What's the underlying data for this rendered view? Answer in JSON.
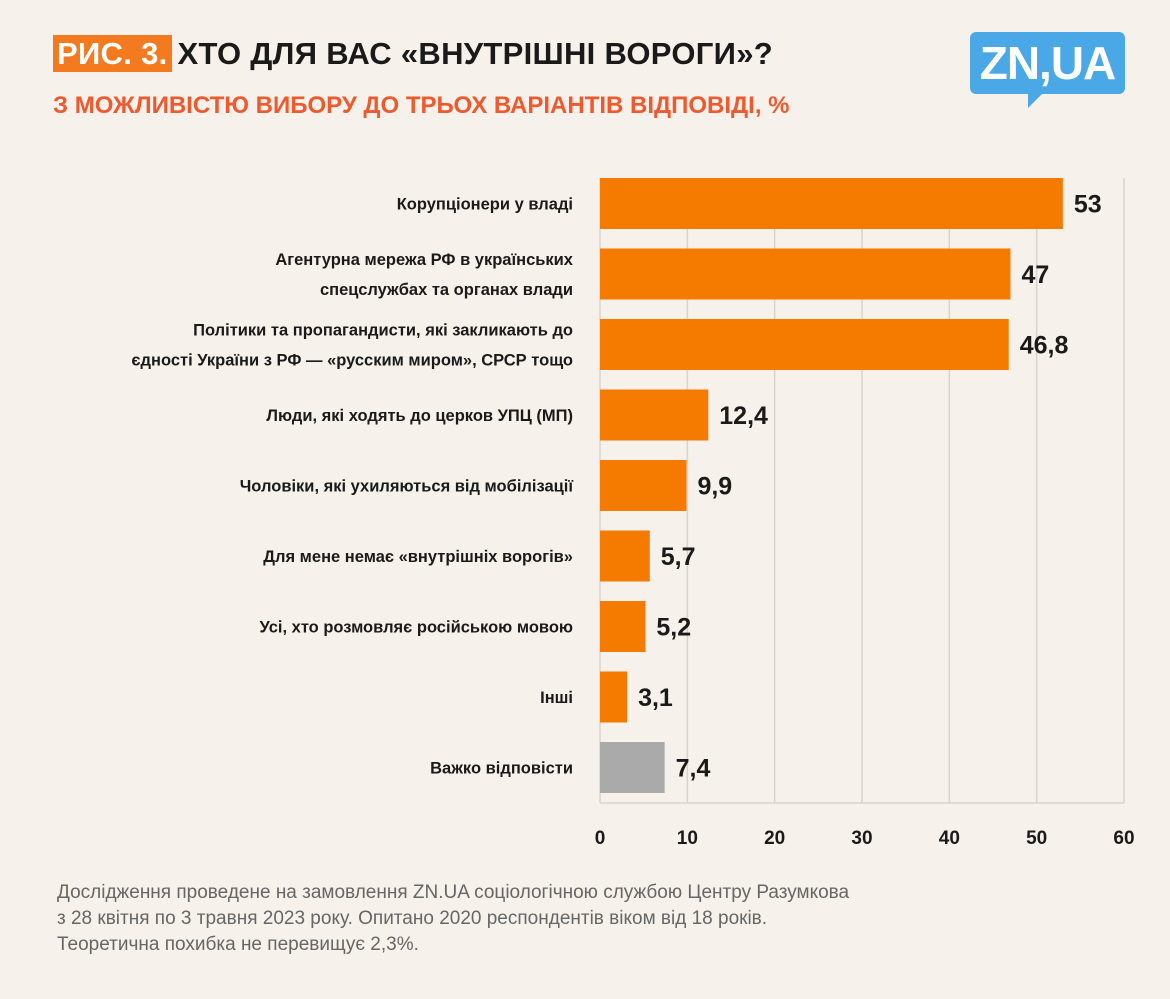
{
  "header": {
    "figure_label": "РИС. 3.",
    "title": "ХТО ДЛЯ ВАС «ВНУТРІШНІ ВОРОГИ»?",
    "subtitle": "З МОЖЛИВІСТЮ ВИБОРУ ДО ТРЬОХ ВАРІАНТІВ ВІДПОВІДІ, %",
    "logo": "ZN,UA"
  },
  "colors": {
    "accent": "#f47a00",
    "gray": "#aaaaaa",
    "grid": "#d9d4cc"
  },
  "chart_data": {
    "type": "bar",
    "orientation": "horizontal",
    "title": "ХТО ДЛЯ ВАС «ВНУТРІШНІ ВОРОГИ»?",
    "categories": [
      [
        "Корупціонери у владі"
      ],
      [
        "Агентурна мережа РФ в українських",
        "спецслужбах та органах влади"
      ],
      [
        "Політики та пропагандисти, які закликають до",
        "єдності України з РФ — «русским миром», СРСР тощо"
      ],
      [
        "Люди, які ходять до церков УПЦ (МП)"
      ],
      [
        "Чоловіки, які ухиляються від мобілізації"
      ],
      [
        "Для мене немає «внутрішніх ворогів»"
      ],
      [
        "Усі, хто розмовляє російською мовою"
      ],
      [
        "Інші"
      ],
      [
        "Важко відповісти"
      ]
    ],
    "values": [
      53,
      47,
      46.8,
      12.4,
      9.9,
      5.7,
      5.2,
      3.1,
      7.4
    ],
    "value_labels": [
      "53",
      "47",
      "46,8",
      "12,4",
      "9,9",
      "5,7",
      "5,2",
      "3,1",
      "7,4"
    ],
    "highlight": [
      false,
      false,
      false,
      false,
      false,
      false,
      false,
      false,
      true
    ],
    "xlim": [
      0,
      60
    ],
    "xticks": [
      "0",
      "10",
      "20",
      "30",
      "40",
      "50",
      "60"
    ],
    "grid": true
  },
  "footer": [
    "Дослідження проведене на замовлення ZN.UA соціологічною службою Центру Разумкова",
    "з 28 квітня по 3 травня 2023 року. Опитано 2020 респондентів віком від 18 років.",
    "Теоретична похибка не перевищує 2,3%."
  ]
}
